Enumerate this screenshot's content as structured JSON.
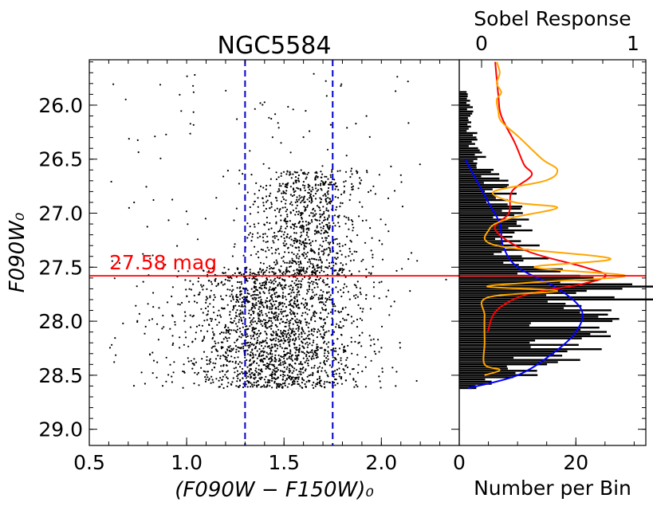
{
  "chart_data": [
    {
      "type": "scatter",
      "title": "NGC5584",
      "xlabel": "(F090W − F150W)₀",
      "ylabel": "F090W₀",
      "xlim": [
        0.5,
        2.4
      ],
      "ylim": [
        29.15,
        25.58
      ],
      "x_ticks": [
        {
          "value": 0.5,
          "label": "0.5"
        },
        {
          "value": 1.0,
          "label": "1.0"
        },
        {
          "value": 1.5,
          "label": "1.5"
        },
        {
          "value": 2.0,
          "label": "2.0"
        }
      ],
      "y_ticks": [
        {
          "value": 26.0,
          "label": "26.0"
        },
        {
          "value": 26.5,
          "label": "26.5"
        },
        {
          "value": 27.0,
          "label": "27.0"
        },
        {
          "value": 27.5,
          "label": "27.5"
        },
        {
          "value": 28.0,
          "label": "28.0"
        },
        {
          "value": 28.5,
          "label": "28.5"
        },
        {
          "value": 29.0,
          "label": "29.0"
        }
      ],
      "color_cut_lines": [
        1.3,
        1.75
      ],
      "trgb_mag": 27.58,
      "trgb_label": "27.58 mag",
      "star_population": {
        "rgb_center_color": 1.45,
        "rgb_color_width": 0.18,
        "mag_range": [
          26.6,
          28.62
        ],
        "approx_star_count": 3000
      }
    },
    {
      "type": "bar",
      "orientation": "horizontal",
      "xlabel": "Number per Bin",
      "top_axis_label": "Sobel Response",
      "xlim": [
        0,
        32
      ],
      "x_ticks": [
        {
          "value": 0,
          "label": "0"
        },
        {
          "value": 20,
          "label": "20"
        }
      ],
      "sobel_ticks": [
        {
          "value": 0,
          "label": "0"
        },
        {
          "value": 1,
          "label": "1"
        }
      ],
      "luminosity_function": {
        "bin_width": 0.02,
        "approx_counts_by_mag": [
          [
            25.85,
            1
          ],
          [
            26.0,
            2
          ],
          [
            26.2,
            2
          ],
          [
            26.4,
            3
          ],
          [
            26.6,
            5
          ],
          [
            26.8,
            7
          ],
          [
            27.0,
            8
          ],
          [
            27.2,
            9
          ],
          [
            27.4,
            11
          ],
          [
            27.55,
            13
          ],
          [
            27.6,
            19
          ],
          [
            27.7,
            25
          ],
          [
            27.8,
            24
          ],
          [
            28.0,
            21
          ],
          [
            28.2,
            19
          ],
          [
            28.4,
            13
          ],
          [
            28.5,
            9
          ],
          [
            28.62,
            2
          ]
        ]
      },
      "series": [
        {
          "name": "smoothed LF",
          "color": "#0000ff",
          "points": [
            [
              26.5,
              1
            ],
            [
              26.7,
              3
            ],
            [
              26.9,
              5
            ],
            [
              27.1,
              7
            ],
            [
              27.3,
              7.5
            ],
            [
              27.5,
              10
            ],
            [
              27.7,
              17
            ],
            [
              27.9,
              21
            ],
            [
              28.1,
              20
            ],
            [
              28.3,
              16
            ],
            [
              28.5,
              10
            ],
            [
              28.62,
              1.5
            ]
          ]
        },
        {
          "name": "Sobel response (red)",
          "color": "#ff0000",
          "points": [
            [
              25.6,
              0.09
            ],
            [
              25.9,
              0.11
            ],
            [
              26.1,
              0.13
            ],
            [
              26.35,
              0.22
            ],
            [
              26.55,
              0.28
            ],
            [
              26.65,
              0.33
            ],
            [
              26.8,
              0.2
            ],
            [
              27.0,
              0.18
            ],
            [
              27.15,
              0.09
            ],
            [
              27.35,
              0.3
            ],
            [
              27.5,
              0.68
            ],
            [
              27.58,
              0.82
            ],
            [
              27.66,
              0.65
            ],
            [
              27.75,
              0.3
            ],
            [
              27.9,
              0.1
            ],
            [
              28.1,
              0.04
            ]
          ]
        },
        {
          "name": "Sobel response (orange)",
          "color": "#ffa500",
          "points": [
            [
              25.6,
              0.1
            ],
            [
              25.7,
              0.12
            ],
            [
              25.8,
              0.1
            ],
            [
              25.88,
              0.13
            ],
            [
              25.95,
              0.1
            ],
            [
              26.05,
              0.11
            ],
            [
              26.15,
              0.13
            ],
            [
              26.3,
              0.25
            ],
            [
              26.5,
              0.4
            ],
            [
              26.6,
              0.5
            ],
            [
              26.7,
              0.42
            ],
            [
              26.8,
              0.08
            ],
            [
              26.9,
              0.22
            ],
            [
              26.95,
              0.5
            ],
            [
              27.05,
              0.18
            ],
            [
              27.15,
              0.05
            ],
            [
              27.3,
              0.1
            ],
            [
              27.42,
              0.85
            ],
            [
              27.5,
              0.35
            ],
            [
              27.58,
              0.95
            ],
            [
              27.64,
              0.35
            ],
            [
              27.68,
              0.04
            ],
            [
              27.72,
              0.5
            ],
            [
              27.78,
              0.04
            ],
            [
              27.95,
              0.02
            ],
            [
              28.2,
              0.02
            ],
            [
              28.4,
              0.02
            ],
            [
              28.45,
              0.12
            ],
            [
              28.5,
              0.02
            ]
          ]
        }
      ]
    }
  ]
}
